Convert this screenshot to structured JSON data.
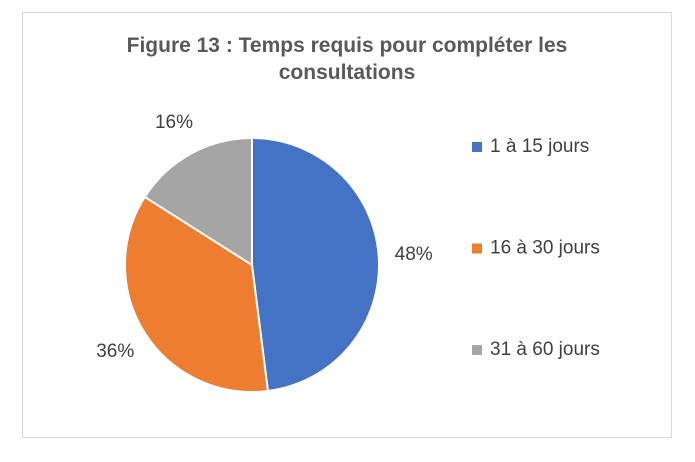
{
  "chart_data": {
    "type": "pie",
    "title": "Figure 13 : Temps requis pour compléter les consultations",
    "categories": [
      "1 à 15 jours",
      "16 à 30 jours",
      "31 à 60 jours"
    ],
    "values": [
      48,
      36,
      16
    ],
    "value_labels": [
      "48%",
      "36%",
      "16%"
    ],
    "colors": [
      "#4472c4",
      "#ed7d31",
      "#a5a5a5"
    ],
    "legend": "right"
  }
}
